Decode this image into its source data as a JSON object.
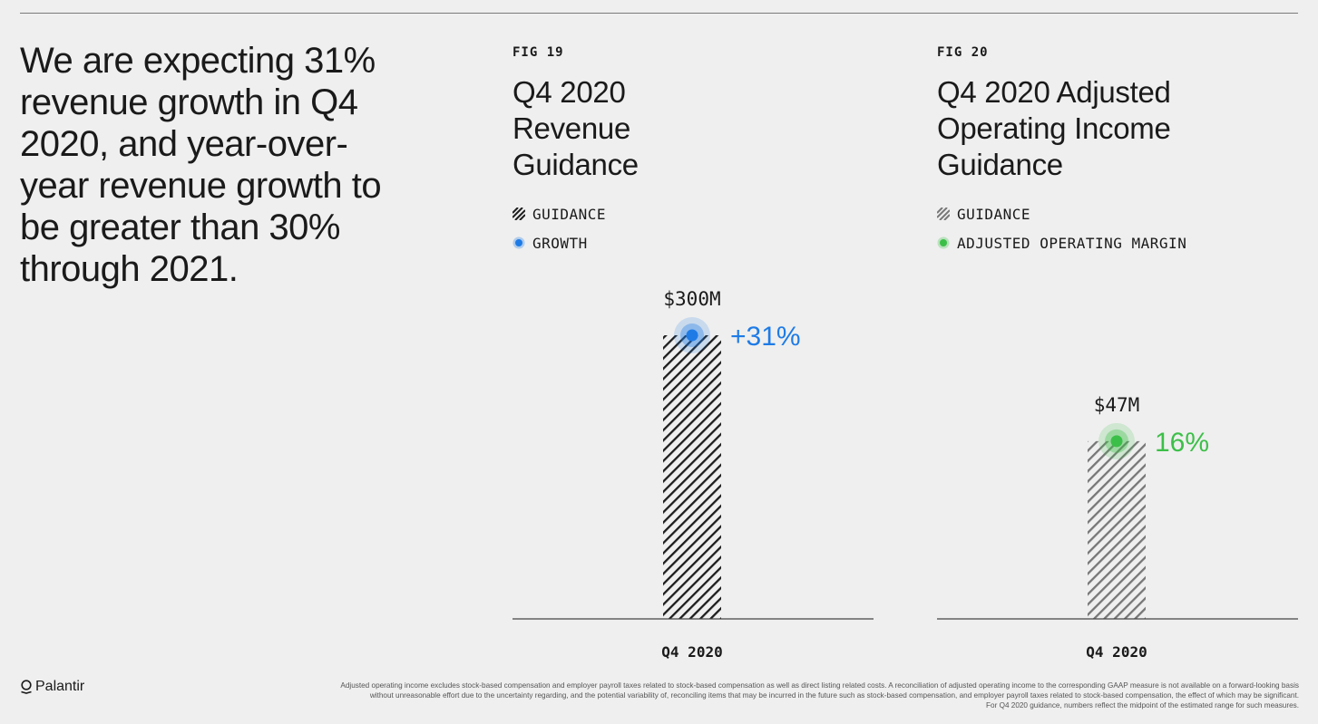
{
  "headline": "We are expecting 31% revenue growth in Q4 2020, and year-over-year revenue growth to be greater than 30% through 2021.",
  "colors": {
    "accent_blue": "#1e7be6",
    "accent_green": "#3cbf48",
    "dark_hatch": "#1d1d1d",
    "light_hatch": "#777777"
  },
  "chart_data": [
    {
      "type": "bar",
      "fig_label": "FIG 19",
      "title": "Q4 2020 Revenue Guidance",
      "legend": [
        {
          "label": "GUIDANCE",
          "icon": "hatch-dark-icon"
        },
        {
          "label": "GROWTH",
          "icon": "blue-dot-icon"
        }
      ],
      "categories": [
        "Q4 2020"
      ],
      "values": [
        300
      ],
      "unit": "$M",
      "value_label": "$300M",
      "marker_label": "+31%",
      "marker_color": "#1e7be6",
      "hatch_color": "#1d1d1d",
      "ylim": [
        0,
        300
      ]
    },
    {
      "type": "bar",
      "fig_label": "FIG 20",
      "title": "Q4 2020 Adjusted Operating Income Guidance",
      "legend": [
        {
          "label": "GUIDANCE",
          "icon": "hatch-light-icon"
        },
        {
          "label": "ADJUSTED OPERATING MARGIN",
          "icon": "green-dot-icon"
        }
      ],
      "categories": [
        "Q4 2020"
      ],
      "values": [
        47
      ],
      "unit": "$M",
      "value_label": "$47M",
      "marker_label": "16%",
      "marker_color": "#3cbf48",
      "hatch_color": "#777777",
      "ylim": [
        0,
        75
      ]
    }
  ],
  "footer": {
    "logo_text": "Palantir",
    "footnote_lines": [
      "Adjusted operating income excludes stock-based compensation and employer payroll taxes related to stock-based compensation as well as direct listing related costs. A reconciliation of adjusted operating income to the corresponding GAAP measure is not available on a forward-looking basis",
      "without unreasonable effort due to the uncertainty regarding, and the potential variability of, reconciling items that may be incurred in the future such as stock-based compensation, and employer payroll taxes related to stock-based compensation, the effect of which may be significant.",
      "For Q4 2020 guidance, numbers reflect the midpoint of the estimated range for such measures."
    ]
  }
}
